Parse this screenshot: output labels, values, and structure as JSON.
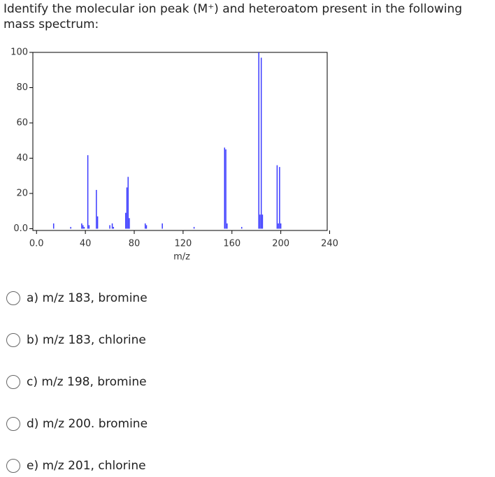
{
  "question": "Identify the molecular ion peak (M⁺) and heteroatom present in the following mass spectrum:",
  "chart_data": {
    "type": "bar",
    "x_label": "m/z",
    "color": "#3a3aff",
    "x": [
      14,
      28,
      37,
      38,
      39,
      42,
      43,
      49,
      50,
      60,
      62,
      63,
      73,
      74,
      75,
      76,
      89,
      90,
      103,
      129,
      154,
      155,
      156,
      168,
      182,
      183,
      184,
      185,
      197,
      198,
      199,
      200
    ],
    "values": [
      3,
      1,
      3,
      2,
      1,
      41.7,
      2,
      22,
      7,
      2,
      3,
      1,
      9,
      23.4,
      29.4,
      6,
      3,
      2,
      3,
      1,
      46,
      45,
      3,
      1,
      100,
      8,
      97,
      8,
      36,
      3,
      35,
      3
    ],
    "xlim": [
      -3,
      238
    ],
    "ylim": [
      -1,
      100
    ],
    "xticks": [
      {
        "value": 0,
        "label": "0.0"
      },
      40,
      80,
      120,
      160,
      200,
      240
    ],
    "yticks": [
      {
        "value": 0,
        "label": "0.0"
      },
      20,
      40,
      60,
      80,
      100
    ]
  },
  "options": [
    "a) m/z 183, bromine",
    "b) m/z 183, chlorine",
    "c) m/z 198, bromine",
    "d) m/z 200. bromine",
    "e) m/z 201, chlorine"
  ]
}
